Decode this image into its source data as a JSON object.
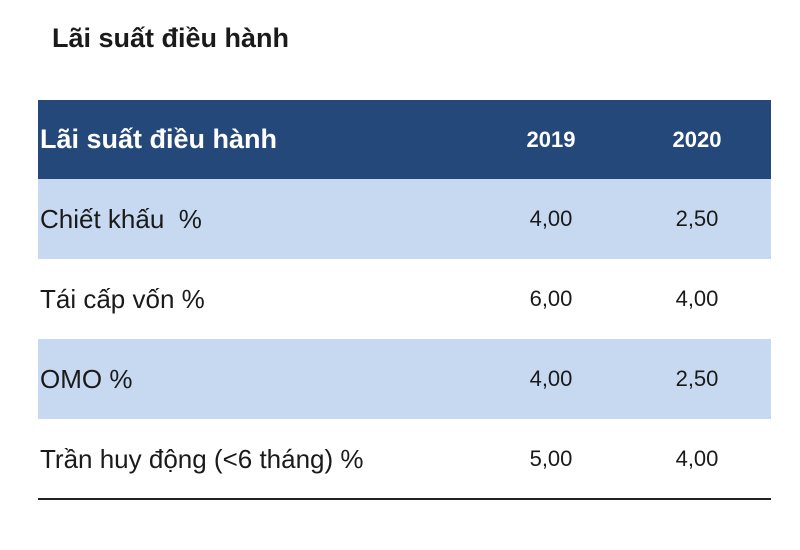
{
  "title": "Lãi suất điều hành",
  "table": {
    "columns": [
      "Lãi suất điều hành",
      "2019",
      "2020"
    ],
    "rows": [
      {
        "label": "Chiết khấu  %",
        "v2019": "4,00",
        "v2020": "2,50"
      },
      {
        "label": "Tái cấp vốn %",
        "v2019": "6,00",
        "v2020": "4,00"
      },
      {
        "label": "OMO %",
        "v2019": "4,00",
        "v2020": "2,50"
      },
      {
        "label": "Trần huy động (<6 tháng) %",
        "v2019": "5,00",
        "v2020": "4,00"
      }
    ]
  },
  "colors": {
    "header_bg": "#24487a",
    "shaded_row_bg": "#c7d9f1",
    "header_text": "#ffffff"
  }
}
